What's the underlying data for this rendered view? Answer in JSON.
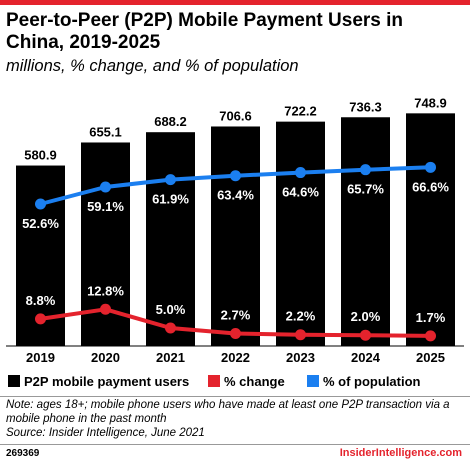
{
  "colors": {
    "accent": "#e4232d",
    "bars": "#000000",
    "change": "#e4232d",
    "population": "#1b7ff0"
  },
  "header": {
    "title": "Peer-to-Peer (P2P) Mobile Payment Users in China, 2019-2025",
    "subtitle": "millions, % change, and % of population"
  },
  "legend": {
    "users": "P2P mobile payment users",
    "change": "% change",
    "population": "% of population"
  },
  "note": {
    "line1": "Note: ages 18+; mobile phone users who have made at least one P2P transaction via a mobile phone in the past month",
    "line2": "Source: Insider Intelligence, June 2021"
  },
  "footer": {
    "id": "269369",
    "brand": "InsiderIntelligence.com"
  },
  "chart_data": {
    "type": "bar",
    "categories": [
      "2019",
      "2020",
      "2021",
      "2022",
      "2023",
      "2024",
      "2025"
    ],
    "series": [
      {
        "name": "P2P mobile payment users",
        "type": "bar",
        "values": [
          580.9,
          655.1,
          688.2,
          706.6,
          722.2,
          736.3,
          748.9
        ],
        "labels": [
          "580.9",
          "655.1",
          "688.2",
          "706.6",
          "722.2",
          "736.3",
          "748.9"
        ]
      },
      {
        "name": "% change",
        "type": "line",
        "values": [
          8.8,
          12.8,
          5.0,
          2.7,
          2.2,
          2.0,
          1.7
        ],
        "labels": [
          "8.8%",
          "12.8%",
          "5.0%",
          "2.7%",
          "2.2%",
          "2.0%",
          "1.7%"
        ]
      },
      {
        "name": "% of population",
        "type": "line",
        "values": [
          52.6,
          59.1,
          61.9,
          63.4,
          64.6,
          65.7,
          66.6
        ],
        "labels": [
          "52.6%",
          "59.1%",
          "61.9%",
          "63.4%",
          "64.6%",
          "65.7%",
          "66.6%"
        ]
      }
    ]
  }
}
